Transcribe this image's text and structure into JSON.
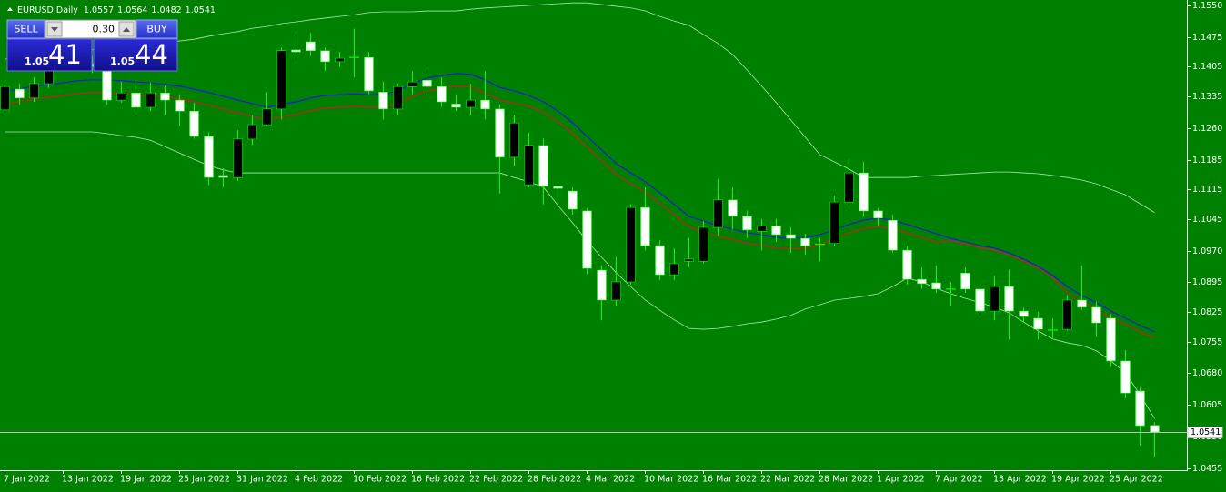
{
  "chart_data": {
    "type": "candlestick",
    "symbol": "EURUSD,Daily",
    "background": "#008000",
    "up_color": "#000000",
    "down_color": "#ffffff",
    "wick_color": "#00ff00",
    "categories": [
      "7 Jan 2022",
      null,
      null,
      null,
      "13 Jan 2022",
      null,
      null,
      null,
      "19 Jan 2022",
      null,
      null,
      null,
      "25 Jan 2022",
      null,
      null,
      null,
      "31 Jan 2022",
      null,
      null,
      null,
      "4 Feb 2022",
      null,
      null,
      null,
      "10 Feb 2022",
      null,
      null,
      null,
      "16 Feb 2022",
      null,
      null,
      null,
      "22 Feb 2022",
      null,
      null,
      null,
      "28 Feb 2022",
      null,
      null,
      null,
      "4 Mar 2022",
      null,
      null,
      null,
      "10 Mar 2022",
      null,
      null,
      null,
      "16 Mar 2022",
      null,
      null,
      null,
      "22 Mar 2022",
      null,
      null,
      null,
      "28 Mar 2022",
      null,
      null,
      null,
      "1 Apr 2022",
      null,
      null,
      null,
      "7 Apr 2022",
      null,
      null,
      null,
      "13 Apr 2022",
      null,
      null,
      null,
      "19 Apr 2022",
      null,
      null,
      null,
      "25 Apr 2022",
      null,
      null,
      null
    ],
    "open": [
      1.1303,
      1.1352,
      1.1331,
      1.1365,
      1.144,
      1.1455,
      1.1412,
      1.1395,
      1.1326,
      1.1343,
      1.1309,
      1.1343,
      1.1326,
      1.13,
      1.124,
      1.1148,
      1.1143,
      1.1234,
      1.1268,
      1.1305,
      1.1445,
      1.1464,
      1.1443,
      1.1417,
      1.1428,
      1.1427,
      1.1345,
      1.1305,
      1.1358,
      1.1373,
      1.1358,
      1.1317,
      1.1309,
      1.1326,
      1.1305,
      1.1191,
      1.1126,
      1.1219,
      1.1122,
      1.1111,
      1.1064,
      1.0924,
      1.0853,
      1.0896,
      1.1072,
      1.0982,
      1.0913,
      1.0945,
      1.0945,
      1.1025,
      1.109,
      1.1051,
      1.1016,
      1.1029,
      1.1008,
      1.0999,
      1.0987,
      1.0987,
      1.1085,
      1.1154,
      1.1064,
      1.1042,
      1.0971,
      1.0902,
      1.0894,
      1.0877,
      1.0917,
      1.0879,
      1.0827,
      1.0885,
      1.0827,
      1.081,
      1.0784,
      1.0784,
      1.0853,
      1.0836,
      1.081,
      1.0709,
      1.0638,
      1.0557
    ],
    "high": [
      1.1373,
      1.1365,
      1.138,
      1.145,
      1.1482,
      1.1465,
      1.143,
      1.14,
      1.137,
      1.1369,
      1.1368,
      1.136,
      1.134,
      1.132,
      1.125,
      1.1165,
      1.1255,
      1.129,
      1.1345,
      1.145,
      1.1482,
      1.1485,
      1.145,
      1.144,
      1.1495,
      1.144,
      1.137,
      1.1365,
      1.1395,
      1.1395,
      1.138,
      1.134,
      1.1365,
      1.1395,
      1.1315,
      1.129,
      1.125,
      1.1235,
      1.113,
      1.112,
      1.107,
      1.0935,
      1.0955,
      1.108,
      1.112,
      1.0995,
      1.0975,
      1.1,
      1.104,
      1.114,
      1.112,
      1.1065,
      1.1045,
      1.1045,
      1.1025,
      1.101,
      1.1,
      1.11,
      1.1185,
      1.118,
      1.107,
      1.1055,
      1.098,
      1.093,
      1.0935,
      1.0895,
      1.093,
      1.089,
      1.091,
      1.0925,
      1.0835,
      1.0825,
      1.081,
      1.0865,
      1.0935,
      1.085,
      1.082,
      1.0735,
      1.0645,
      1.0564
    ],
    "low": [
      1.1295,
      1.1315,
      1.1322,
      1.1355,
      1.143,
      1.1398,
      1.139,
      1.1315,
      1.132,
      1.13,
      1.13,
      1.129,
      1.1265,
      1.1235,
      1.1125,
      1.112,
      1.1135,
      1.122,
      1.1265,
      1.128,
      1.142,
      1.143,
      1.1395,
      1.1405,
      1.138,
      1.134,
      1.128,
      1.129,
      1.134,
      1.1345,
      1.131,
      1.13,
      1.129,
      1.128,
      1.1105,
      1.117,
      1.112,
      1.108,
      1.109,
      1.1055,
      1.0915,
      1.0805,
      1.084,
      1.089,
      1.097,
      1.09,
      1.09,
      1.093,
      1.094,
      1.1005,
      1.102,
      1.1,
      1.097,
      1.099,
      1.0965,
      1.096,
      1.0945,
      1.098,
      1.1075,
      1.105,
      1.103,
      1.0965,
      1.089,
      1.088,
      1.087,
      1.084,
      1.087,
      1.082,
      1.0805,
      1.076,
      1.08,
      1.076,
      1.076,
      1.078,
      1.083,
      1.0765,
      1.0695,
      1.062,
      1.051,
      1.0482
    ],
    "close": [
      1.1358,
      1.1331,
      1.1365,
      1.144,
      1.1455,
      1.1412,
      1.1405,
      1.1326,
      1.1343,
      1.1309,
      1.1343,
      1.1326,
      1.13,
      1.124,
      1.1143,
      1.1143,
      1.1234,
      1.1268,
      1.1305,
      1.1443,
      1.144,
      1.1443,
      1.1417,
      1.1425,
      1.1427,
      1.1348,
      1.1305,
      1.1358,
      1.1369,
      1.1358,
      1.1322,
      1.1309,
      1.1326,
      1.1305,
      1.1191,
      1.1272,
      1.1219,
      1.1122,
      1.1117,
      1.1068,
      1.0928,
      1.0853,
      1.0896,
      1.1072,
      1.0982,
      1.0913,
      1.0939,
      1.095,
      1.1025,
      1.109,
      1.1051,
      1.1019,
      1.1029,
      1.1008,
      1.0999,
      1.0982,
      1.0985,
      1.1085,
      1.1154,
      1.1064,
      1.1047,
      1.0971,
      1.0902,
      1.0892,
      1.0879,
      1.0879,
      1.0879,
      1.0827,
      1.0885,
      1.0827,
      1.0814,
      1.0784,
      1.0782,
      1.0853,
      1.0836,
      1.0799,
      1.0709,
      1.0633,
      1.0556,
      1.0541
    ],
    "indicators": [
      {
        "color": "#a8e8a8",
        "width": 0.8,
        "values": [
          1.1423,
          1.1427,
          1.143,
          1.1434,
          1.1438,
          1.144,
          1.1445,
          1.1449,
          1.1451,
          1.1455,
          1.146,
          1.1462,
          1.1466,
          1.147,
          1.1477,
          1.1483,
          1.1488,
          1.1496,
          1.15,
          1.1507,
          1.1511,
          1.1516,
          1.152,
          1.1524,
          1.1528,
          1.1533,
          1.1535,
          1.1535,
          1.1535,
          1.1537,
          1.1537,
          1.1537,
          1.1541,
          1.1544,
          1.1546,
          1.1548,
          1.155,
          1.1552,
          1.1554,
          1.1556,
          1.1556,
          1.1552,
          1.1548,
          1.1544,
          1.1537,
          1.1524,
          1.1513,
          1.1503,
          1.1481,
          1.146,
          1.1434,
          1.1397,
          1.1359,
          1.132,
          1.1279,
          1.1238,
          1.1197,
          1.118,
          1.1163,
          1.1143,
          1.1143,
          1.1143,
          1.1143,
          1.1146,
          1.1148,
          1.115,
          1.1152,
          1.1154,
          1.1156,
          1.1156,
          1.1154,
          1.1152,
          1.1148,
          1.1143,
          1.1137,
          1.1128,
          1.1115,
          1.1102,
          1.1081,
          1.106
        ]
      },
      {
        "color": "#a8e8a8",
        "width": 0.8,
        "values": [
          1.1251,
          1.1251,
          1.1251,
          1.1251,
          1.1251,
          1.1251,
          1.1251,
          1.1247,
          1.1242,
          1.1238,
          1.1231,
          1.1216,
          1.1201,
          1.1186,
          1.1171,
          1.1161,
          1.1154,
          1.1154,
          1.1154,
          1.1154,
          1.1154,
          1.1154,
          1.1154,
          1.1154,
          1.1154,
          1.1154,
          1.1154,
          1.1154,
          1.1154,
          1.1154,
          1.1154,
          1.1154,
          1.1154,
          1.1154,
          1.1154,
          1.1143,
          1.1133,
          1.112,
          1.1077,
          1.1036,
          1.0993,
          1.0954,
          1.0918,
          1.0885,
          1.0853,
          1.0829,
          1.0806,
          1.0786,
          1.0784,
          1.0786,
          1.0791,
          1.0797,
          1.0801,
          1.0808,
          1.0817,
          1.0832,
          1.0842,
          1.0853,
          1.0857,
          1.0862,
          1.0868,
          1.0885,
          1.0905,
          1.0896,
          1.0881,
          1.0868,
          1.0857,
          1.0847,
          1.0836,
          1.0823,
          1.0801,
          1.078,
          1.0761,
          1.0752,
          1.0746,
          1.0733,
          1.0709,
          1.0681,
          1.0629,
          1.0573
        ]
      },
      {
        "color": "#c81e1e",
        "width": 1.2,
        "values": [
          1.1318,
          1.1322,
          1.1329,
          1.1333,
          1.1337,
          1.1342,
          1.1344,
          1.1344,
          1.1342,
          1.1339,
          1.1337,
          1.1333,
          1.1329,
          1.1322,
          1.1314,
          1.1305,
          1.1296,
          1.1288,
          1.1279,
          1.1286,
          1.1292,
          1.1301,
          1.1307,
          1.1309,
          1.1311,
          1.1309,
          1.1309,
          1.1318,
          1.1335,
          1.1348,
          1.1354,
          1.1359,
          1.1357,
          1.1344,
          1.1326,
          1.1318,
          1.1312,
          1.1297,
          1.1275,
          1.1248,
          1.1215,
          1.1183,
          1.1151,
          1.1129,
          1.1108,
          1.1082,
          1.1054,
          1.1026,
          1.1015,
          1.1004,
          1.0996,
          1.0987,
          1.0983,
          1.0976,
          1.0974,
          1.0976,
          1.0983,
          1.0999,
          1.1012,
          1.1022,
          1.1027,
          1.1022,
          1.1012,
          1.1001,
          1.099,
          1.0994,
          1.0986,
          1.0977,
          1.0971,
          1.096,
          1.0945,
          1.0928,
          1.0906,
          1.087,
          1.0849,
          1.0832,
          1.0812,
          1.0795,
          1.0778,
          1.0763
        ]
      },
      {
        "color": "#1a1ae0",
        "width": 1.2,
        "values": [
          1.1348,
          1.1352,
          1.1359,
          1.1363,
          1.1367,
          1.1372,
          1.1374,
          1.1374,
          1.1372,
          1.1369,
          1.1367,
          1.1363,
          1.1359,
          1.1352,
          1.1344,
          1.1335,
          1.1326,
          1.1318,
          1.1309,
          1.1316,
          1.1322,
          1.1331,
          1.1337,
          1.1339,
          1.1341,
          1.1339,
          1.1339,
          1.1348,
          1.1365,
          1.1378,
          1.1384,
          1.1389,
          1.1387,
          1.1374,
          1.1356,
          1.1348,
          1.1337,
          1.1322,
          1.13,
          1.1273,
          1.124,
          1.1208,
          1.1176,
          1.1154,
          1.1133,
          1.1107,
          1.1079,
          1.1051,
          1.104,
          1.1029,
          1.1021,
          1.1012,
          1.1008,
          1.1001,
          1.0999,
          1.1001,
          1.1008,
          1.1019,
          1.1032,
          1.1042,
          1.1047,
          1.1042,
          1.1032,
          1.1021,
          1.101,
          1.0999,
          1.0991,
          1.0982,
          1.0976,
          1.0965,
          1.095,
          1.0933,
          1.0911,
          1.0885,
          1.0864,
          1.0847,
          1.0827,
          1.081,
          1.0793,
          1.0778
        ]
      }
    ],
    "ylim": [
      1.0455,
      1.155
    ],
    "yticks": [
      {
        "value": 1.155,
        "label": "1.1550"
      },
      1.1475,
      1.1405,
      1.1335,
      {
        "value": 1.126,
        "label": "1.1260"
      },
      1.1185,
      1.1115,
      1.1045,
      {
        "value": 1.097,
        "label": "1.0970"
      },
      1.0895,
      1.0825,
      1.0755,
      {
        "value": 1.068,
        "label": "1.0680"
      },
      1.0605,
      {
        "value": 1.053,
        "label": "1.0530"
      },
      1.0455
    ],
    "current_price": 1.0541,
    "trade_panel": {
      "sell_label": "SELL",
      "buy_label": "BUY",
      "volume": "0.30",
      "bid_prefix": "1.05",
      "bid_pips": "41",
      "ask_prefix": "1.05",
      "ask_pips": "44"
    }
  }
}
